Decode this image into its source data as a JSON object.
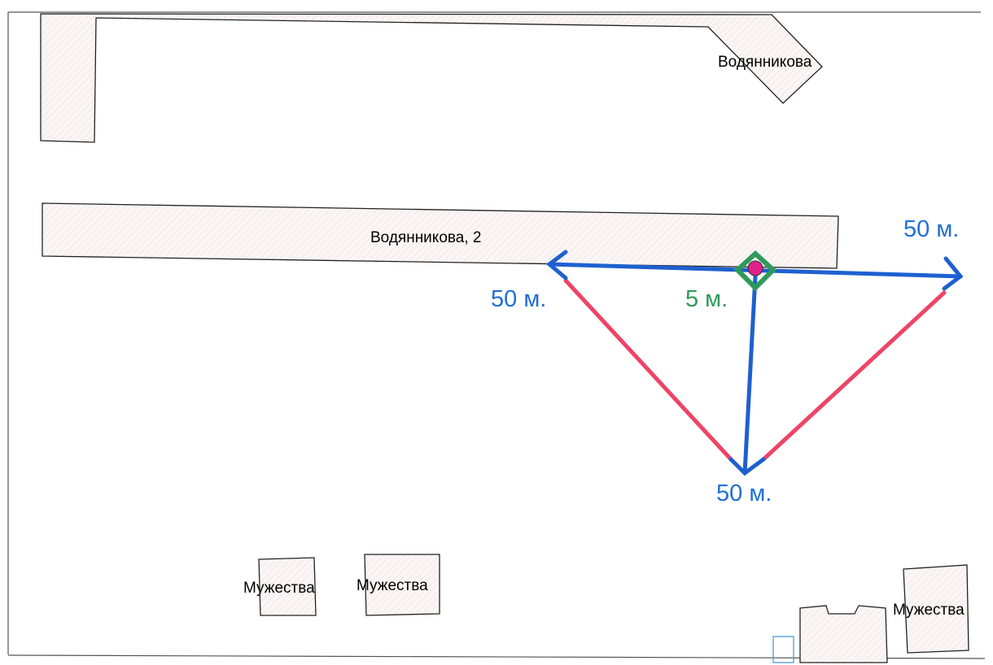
{
  "buildings": [
    {
      "label": "Водянникова"
    },
    {
      "label": "Водянникова, 2"
    },
    {
      "label": "Мужества"
    },
    {
      "label": "Мужества"
    },
    {
      "label": "Мужества"
    }
  ],
  "distances": [
    {
      "label": "50 м."
    },
    {
      "label": "50 м."
    },
    {
      "label": "50 м."
    },
    {
      "label": "5 м."
    }
  ]
}
